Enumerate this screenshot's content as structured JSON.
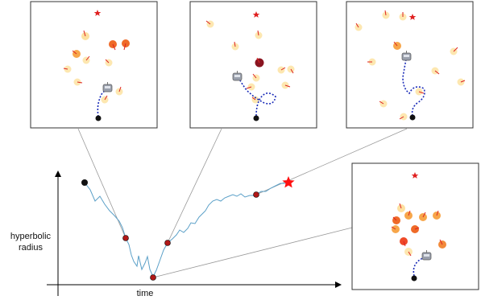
{
  "plot": {
    "ylabel_line1": "hyperbolic",
    "ylabel_line2": "radius",
    "xlabel": "time"
  },
  "panels": [
    {
      "id": "panel-1",
      "label": ""
    },
    {
      "id": "panel-2",
      "label": ""
    },
    {
      "id": "panel-3",
      "label": ""
    },
    {
      "id": "panel-4",
      "label": ""
    }
  ],
  "colors": {
    "curve": "#5ba0c8",
    "marker": "#b01818",
    "goal": "#ff1010",
    "start": "#111111",
    "trajectory": "#1a2bb8",
    "pedestrian_light": "#fde7b0",
    "pedestrian_mid": "#f7a64a",
    "pedestrian_dark": "#ef6a28",
    "pedestrian_darkest": "#8a1420"
  },
  "icons": [
    "goal-star-icon",
    "robot-icon",
    "start-dot-icon",
    "pedestrian-icon"
  ]
}
